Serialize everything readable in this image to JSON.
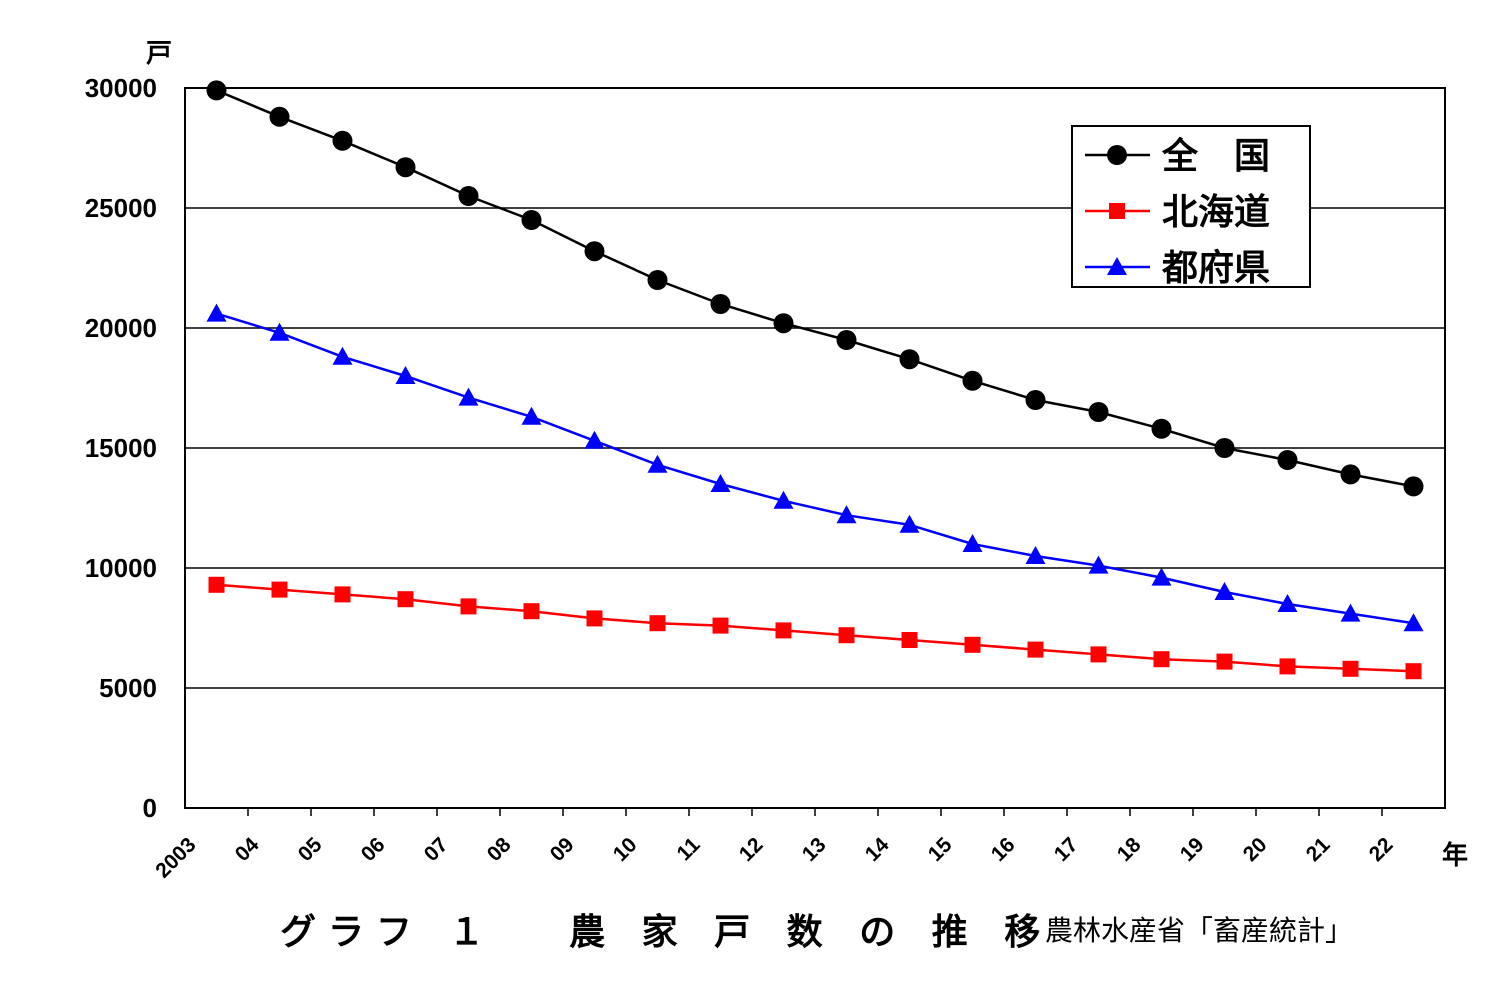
{
  "chart_data": {
    "type": "line",
    "y_unit": "戸",
    "x_unit": "年",
    "categories": [
      "2003",
      "04",
      "05",
      "06",
      "07",
      "08",
      "09",
      "10",
      "11",
      "12",
      "13",
      "14",
      "15",
      "16",
      "17",
      "18",
      "19",
      "20",
      "21",
      "22"
    ],
    "ylim": [
      0,
      30000
    ],
    "yticks": [
      0,
      5000,
      10000,
      15000,
      20000,
      25000,
      30000
    ],
    "grid": true,
    "legend_position": "top-right",
    "series": [
      {
        "name": "全　国",
        "color": "#000000",
        "marker": "circle",
        "values": [
          29900,
          28800,
          27800,
          26700,
          25500,
          24500,
          23200,
          22000,
          21000,
          20200,
          19500,
          18700,
          17800,
          17000,
          16500,
          15800,
          15000,
          14500,
          13900,
          13400
        ]
      },
      {
        "name": "北海道",
        "color": "#ff0000",
        "marker": "square",
        "values": [
          9300,
          9100,
          8900,
          8700,
          8400,
          8200,
          7900,
          7700,
          7600,
          7400,
          7200,
          7000,
          6800,
          6600,
          6400,
          6200,
          6100,
          5900,
          5800,
          5700
        ]
      },
      {
        "name": "都府県",
        "color": "#0000ff",
        "marker": "triangle",
        "values": [
          20600,
          19800,
          18800,
          18000,
          17100,
          16300,
          15300,
          14300,
          13500,
          12800,
          12200,
          11800,
          11000,
          10500,
          10100,
          9600,
          9000,
          8500,
          8100,
          7700
        ]
      }
    ]
  },
  "caption": {
    "title": "グラフ １　 農 家 戸 数 の 推 移",
    "source": "農林水産省「畜産統計」"
  }
}
